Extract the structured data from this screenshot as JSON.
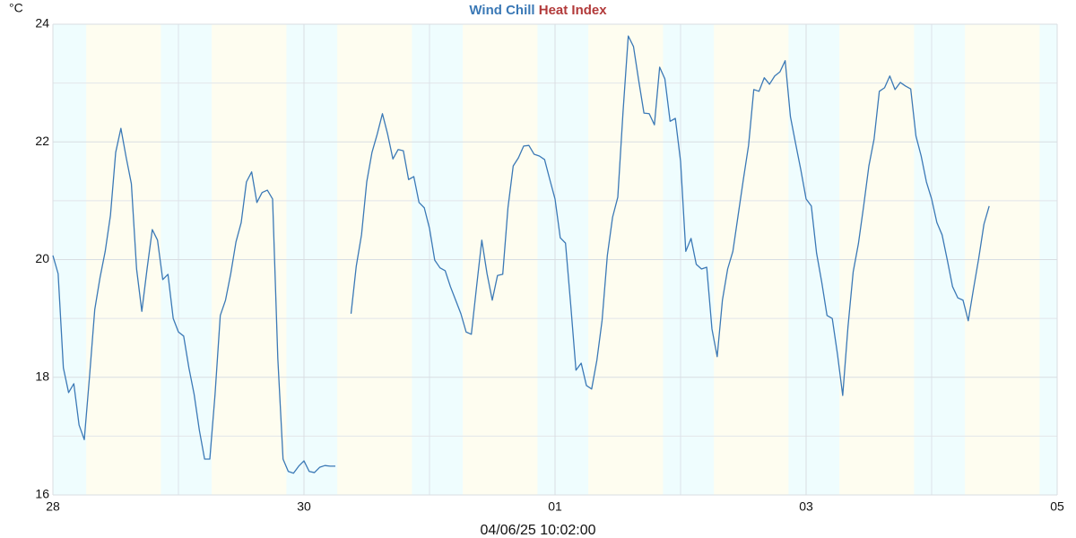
{
  "chart_data": {
    "type": "line",
    "ylabel": "°C",
    "footer": "04/06/25 10:02:00",
    "x": [
      0,
      1,
      2,
      3,
      4,
      5,
      6,
      7,
      8,
      9,
      10,
      11,
      12,
      13,
      14,
      15,
      16,
      17,
      18,
      19,
      20,
      21,
      22,
      23,
      24,
      25,
      26,
      27,
      28,
      29,
      30,
      31,
      32,
      33,
      34,
      35,
      36,
      37,
      38,
      39,
      40,
      41,
      42,
      43,
      44,
      45,
      46,
      47,
      48,
      49,
      50,
      51,
      52,
      53,
      54,
      55,
      56,
      57,
      58,
      59,
      60,
      61,
      62,
      63,
      64,
      65,
      66,
      67,
      68,
      69,
      70,
      71,
      72,
      73,
      74,
      75,
      76,
      77,
      78,
      79,
      80,
      81,
      82,
      83,
      84,
      85,
      86,
      87,
      88,
      89,
      90,
      91,
      92,
      93,
      94,
      95,
      96,
      97,
      98,
      99,
      100,
      101,
      102,
      103,
      104,
      105,
      106,
      107,
      108,
      109,
      110,
      111,
      112,
      113,
      114,
      115,
      116,
      117,
      118,
      119,
      120,
      121,
      122,
      123,
      124,
      125,
      126,
      127,
      128,
      129,
      130,
      131,
      132,
      133,
      134,
      135,
      136,
      137,
      138,
      139,
      140,
      141,
      142,
      143,
      144,
      145,
      146,
      147,
      148,
      149,
      150,
      151,
      152,
      153,
      154,
      155,
      156,
      157,
      158,
      159,
      160,
      161,
      162,
      163,
      164,
      165,
      166,
      167,
      168,
      169,
      170,
      171,
      172,
      173,
      174,
      175,
      176,
      177,
      178,
      179
    ],
    "series": [
      {
        "name": "Wind Chill",
        "color": "#3b79b6",
        "values": [
          20.07,
          19.76,
          18.16,
          17.74,
          17.89,
          17.19,
          16.94,
          18.01,
          19.15,
          19.69,
          20.14,
          20.75,
          21.82,
          22.23,
          21.74,
          21.29,
          19.84,
          19.12,
          19.84,
          20.51,
          20.33,
          19.66,
          19.75,
          19.0,
          18.77,
          18.7,
          18.16,
          17.71,
          17.1,
          16.61,
          16.61,
          17.71,
          19.05,
          19.31,
          19.76,
          20.3,
          20.63,
          21.32,
          21.49,
          20.97,
          21.14,
          21.18,
          21.03,
          18.32,
          16.61,
          16.4,
          16.37,
          16.49,
          16.58,
          16.4,
          16.38,
          16.47,
          16.5,
          16.49,
          16.49,
          null,
          null,
          19.08,
          19.89,
          20.42,
          21.32,
          21.82,
          22.13,
          22.48,
          22.13,
          21.71,
          21.87,
          21.85,
          21.36,
          21.41,
          20.97,
          20.88,
          20.53,
          19.99,
          19.86,
          19.81,
          19.54,
          19.31,
          19.08,
          18.77,
          18.73,
          19.54,
          20.33,
          19.76,
          19.31,
          19.73,
          19.75,
          20.88,
          21.59,
          21.73,
          21.93,
          21.94,
          21.79,
          21.76,
          21.7,
          21.36,
          21.03,
          20.37,
          20.28,
          19.23,
          18.12,
          18.24,
          17.86,
          17.8,
          18.29,
          18.97,
          20.07,
          20.72,
          21.06,
          22.51,
          23.8,
          23.62,
          23.04,
          22.49,
          22.48,
          22.29,
          23.27,
          23.07,
          22.35,
          22.4,
          21.67,
          20.14,
          20.36,
          19.92,
          19.84,
          19.87,
          18.82,
          18.35,
          19.31,
          19.84,
          20.14,
          20.75,
          21.36,
          21.94,
          22.89,
          22.86,
          23.09,
          22.98,
          23.12,
          23.19,
          23.38,
          22.43,
          21.97,
          21.52,
          21.03,
          20.91,
          20.11,
          19.61,
          19.05,
          19.0,
          18.39,
          17.69,
          18.85,
          19.79,
          20.27,
          20.91,
          21.59,
          22.05,
          22.86,
          22.92,
          23.12,
          22.89,
          23.01,
          22.95,
          22.9,
          22.1,
          21.76,
          21.32,
          21.03,
          20.63,
          20.42,
          19.99,
          19.54,
          19.35,
          19.31,
          18.96,
          19.5,
          20.02,
          20.6,
          20.91
        ]
      },
      {
        "name": "Heat Index",
        "color": "#b23a3a",
        "values": [
          null,
          null,
          null,
          null,
          null,
          null,
          null,
          null,
          null,
          null,
          null,
          null,
          null,
          null,
          null,
          null,
          null,
          null,
          null,
          null,
          null,
          null,
          null,
          null,
          null,
          null,
          null,
          null,
          null,
          null,
          null,
          null,
          null,
          null,
          null,
          null,
          null,
          null,
          null,
          null,
          null,
          null,
          null,
          null,
          null,
          null,
          null,
          null,
          null,
          null,
          null,
          null,
          null,
          null,
          null,
          null,
          null,
          null,
          null,
          null,
          null,
          null,
          null,
          null,
          null,
          null,
          null,
          null,
          null,
          null,
          null,
          null,
          null,
          null,
          null,
          null,
          null,
          null,
          null,
          null,
          null,
          null,
          null,
          null,
          null,
          null,
          null,
          null,
          null,
          null,
          null,
          null,
          null,
          null,
          null,
          null,
          null,
          null,
          null,
          null,
          null,
          null,
          null,
          null,
          null,
          null,
          null,
          null,
          null,
          null,
          null,
          null,
          null,
          null,
          null,
          null,
          null,
          null,
          null,
          null,
          null,
          null,
          null,
          null,
          null,
          null,
          null,
          null,
          null,
          null,
          null,
          null,
          null,
          null,
          null,
          null,
          null,
          null,
          null,
          null,
          null,
          null,
          null,
          null,
          null,
          null,
          null,
          null,
          null,
          null,
          null,
          null,
          null,
          null,
          null,
          null,
          null,
          null,
          null,
          null,
          null,
          null,
          null,
          null,
          null,
          null,
          null,
          null,
          null,
          null,
          null,
          null,
          null,
          null,
          null,
          null,
          null,
          null,
          null,
          null
        ]
      }
    ],
    "xlim": [
      0,
      192
    ],
    "xticks": [
      {
        "value": 0,
        "label": "28"
      },
      {
        "value": 48,
        "label": "30"
      },
      {
        "value": 96,
        "label": "01"
      },
      {
        "value": 144,
        "label": "03"
      },
      {
        "value": 192,
        "label": "05"
      }
    ],
    "x_minor_ticks": [
      24,
      72,
      120,
      168
    ],
    "ylim": [
      16,
      24
    ],
    "yticks": [
      16,
      18,
      20,
      22,
      24
    ],
    "y_minor_ticks": [
      17,
      19,
      21,
      23
    ],
    "grid": true
  }
}
